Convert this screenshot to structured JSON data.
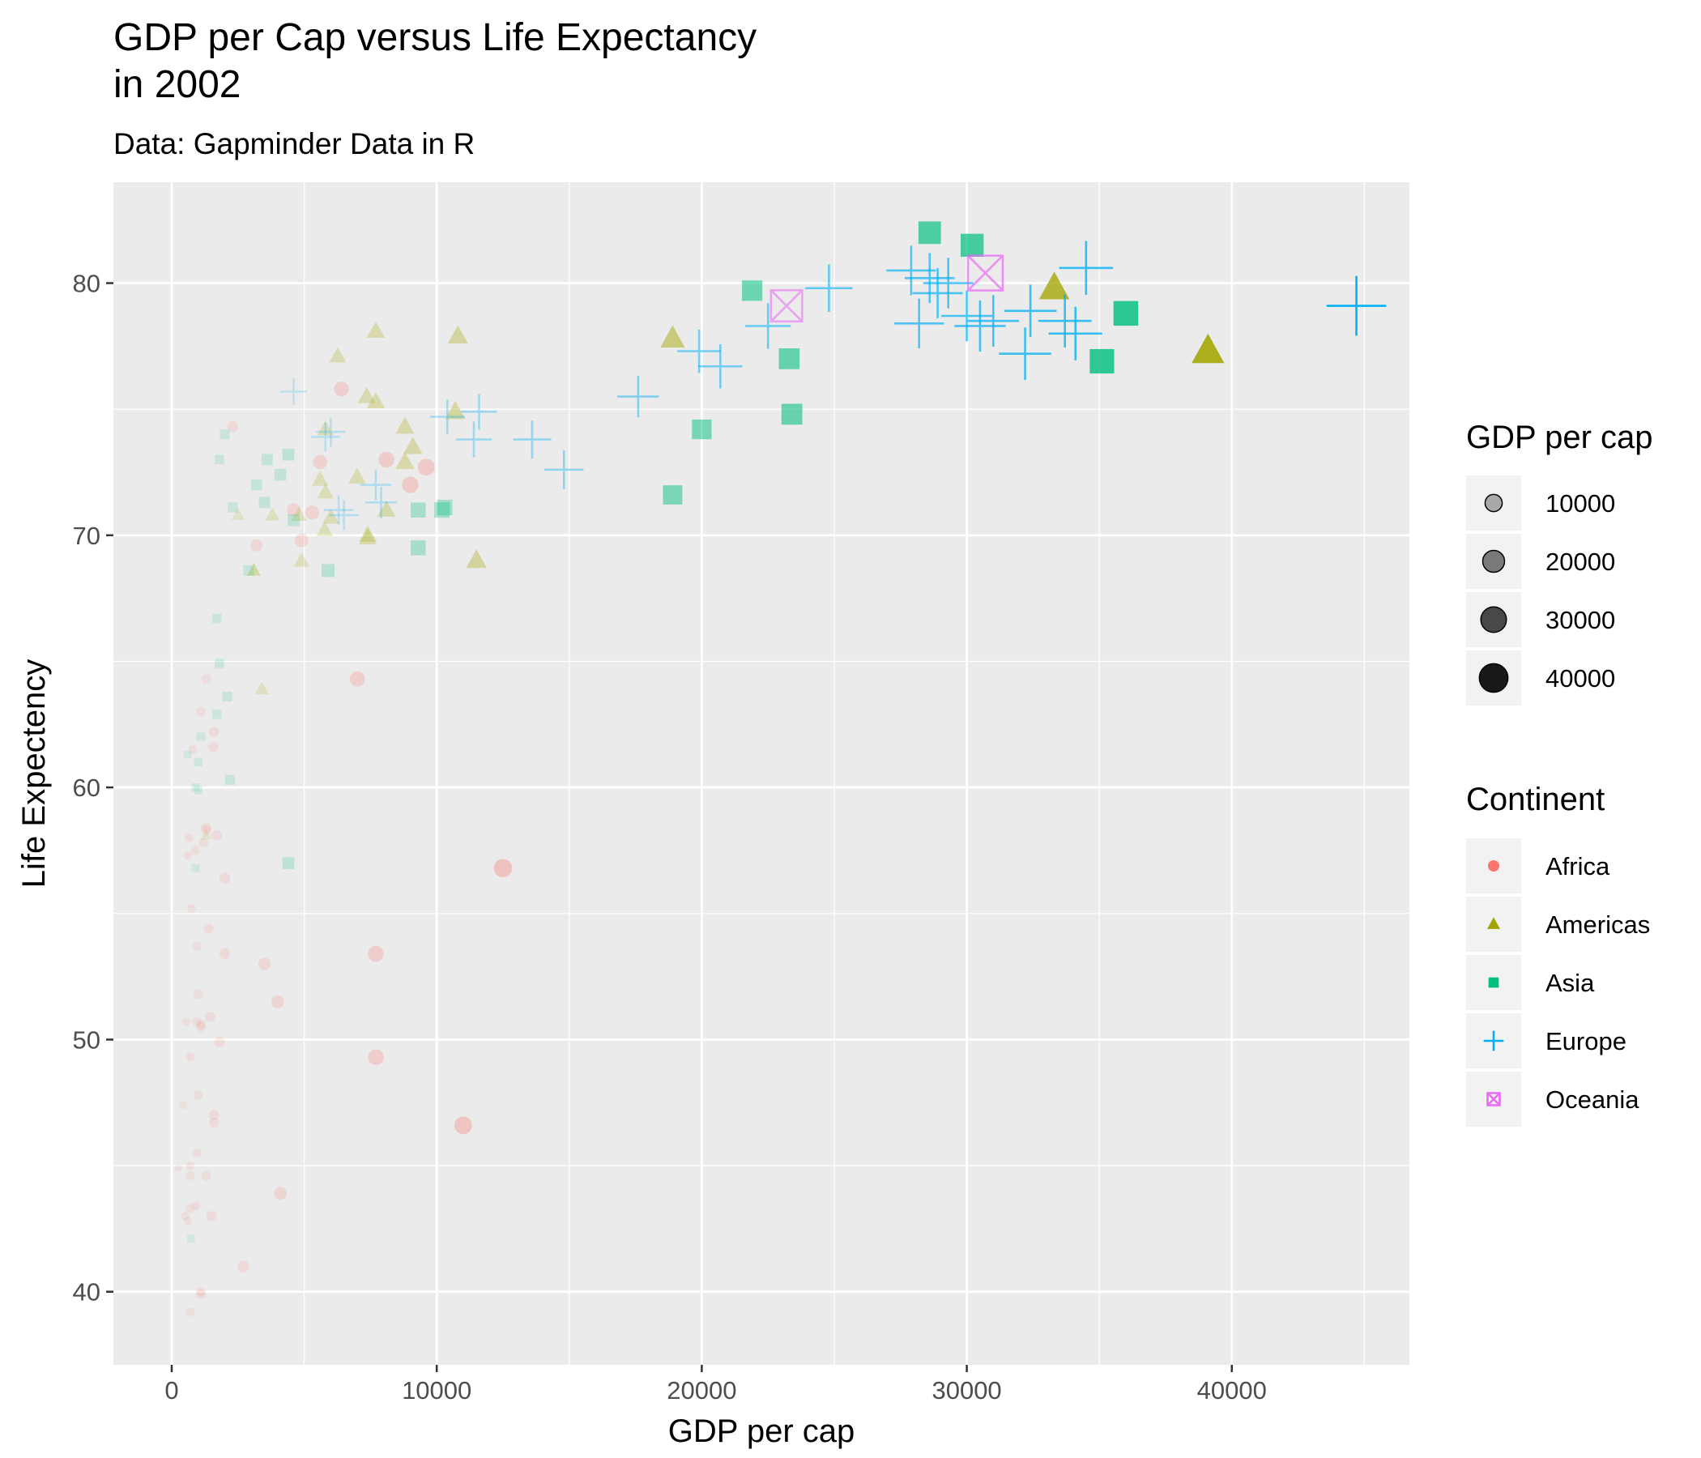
{
  "chart_data": {
    "type": "scatter",
    "title": "GDP per Cap versus Life Expectancy\nin 2002",
    "subtitle": "Data: Gapminder Data in R",
    "xlabel": "GDP per cap",
    "ylabel": "Life Expectency",
    "xlim": [
      -2200,
      46700
    ],
    "ylim": [
      37.1,
      84.0
    ],
    "x_ticks": [
      0,
      10000,
      20000,
      30000,
      40000
    ],
    "x_tick_labels": [
      "0",
      "10000",
      "20000",
      "30000",
      "40000"
    ],
    "y_ticks": [
      40,
      50,
      60,
      70,
      80
    ],
    "y_tick_labels": [
      "40",
      "50",
      "60",
      "70",
      "80"
    ],
    "grid": true,
    "legend_position": "right",
    "size_legend": {
      "title": "GDP per cap",
      "breaks": [
        10000,
        20000,
        30000,
        40000
      ],
      "labels": [
        "10000",
        "20000",
        "30000",
        "40000"
      ]
    },
    "color_legend": {
      "title": "Continent",
      "entries": [
        {
          "label": "Africa",
          "color": "#F8766D",
          "shape": "circle"
        },
        {
          "label": "Americas",
          "color": "#A3A500",
          "shape": "triangle"
        },
        {
          "label": "Asia",
          "color": "#00BF7D",
          "shape": "square"
        },
        {
          "label": "Europe",
          "color": "#00B0F6",
          "shape": "plus"
        },
        {
          "label": "Oceania",
          "color": "#E76BF3",
          "shape": "boxcross"
        }
      ]
    },
    "series": [
      {
        "name": "Africa",
        "points": [
          [
            5300,
            70.9
          ],
          [
            2700,
            41.0
          ],
          [
            1400,
            54.4
          ],
          [
            11000,
            46.6
          ],
          [
            1100,
            50.6
          ],
          [
            450,
            47.4
          ],
          [
            1800,
            49.9
          ],
          [
            700,
            43.3
          ],
          [
            1100,
            50.5
          ],
          [
            1100,
            63.0
          ],
          [
            250,
            44.9
          ],
          [
            3500,
            53.0
          ],
          [
            1300,
            44.6
          ],
          [
            3200,
            69.6
          ],
          [
            2000,
            53.4
          ],
          [
            750,
            55.2
          ],
          [
            550,
            50.7
          ],
          [
            12500,
            56.8
          ],
          [
            650,
            58.0
          ],
          [
            1300,
            58.4
          ],
          [
            950,
            53.7
          ],
          [
            950,
            45.5
          ],
          [
            4100,
            43.9
          ],
          [
            950,
            50.7
          ],
          [
            9600,
            72.7
          ],
          [
            600,
            57.3
          ],
          [
            700,
            45.0
          ],
          [
            5600,
            72.9
          ],
          [
            900,
            43.4
          ],
          [
            800,
            61.5
          ],
          [
            4600,
            71.0
          ],
          [
            500,
            43.0
          ],
          [
            600,
            42.8
          ],
          [
            1600,
            47.0
          ],
          [
            1000,
            51.8
          ],
          [
            2000,
            56.4
          ],
          [
            1700,
            58.1
          ],
          [
            4900,
            69.8
          ],
          [
            700,
            44.6
          ],
          [
            8100,
            73.0
          ],
          [
            2300,
            74.3
          ],
          [
            7700,
            53.4
          ],
          [
            4000,
            51.5
          ],
          [
            1100,
            40.0
          ],
          [
            1300,
            58.3
          ],
          [
            1200,
            57.8
          ],
          [
            1500,
            43.0
          ],
          [
            7000,
            64.3
          ],
          [
            9000,
            72.0
          ],
          [
            1600,
            46.7
          ],
          [
            6400,
            75.8
          ],
          [
            700,
            49.3
          ],
          [
            700,
            39.2
          ],
          [
            1100,
            39.9
          ],
          [
            7710,
            49.3
          ],
          [
            1300,
            64.3
          ],
          [
            1600,
            62.2
          ],
          [
            1450,
            50.9
          ],
          [
            1000,
            47.8
          ],
          [
            1570,
            61.6
          ],
          [
            900,
            57.5
          ]
        ]
      },
      {
        "name": "Americas",
        "points": [
          [
            8800,
            74.3
          ],
          [
            3400,
            63.9
          ],
          [
            8100,
            71.0
          ],
          [
            33300,
            79.8
          ],
          [
            10800,
            77.9
          ],
          [
            5800,
            71.7
          ],
          [
            7700,
            78.1
          ],
          [
            8800,
            72.9
          ],
          [
            4800,
            70.8
          ],
          [
            5800,
            74.2
          ],
          [
            6000,
            70.7
          ],
          [
            4900,
            68.98
          ],
          [
            3100,
            68.6
          ],
          [
            1300,
            58.1
          ],
          [
            3100,
            68.6
          ],
          [
            6994,
            72.3
          ],
          [
            10700,
            74.9
          ],
          [
            2500,
            70.8
          ],
          [
            7356,
            75.5
          ],
          [
            3800,
            70.8
          ],
          [
            7400,
            69.9
          ],
          [
            18900,
            77.8
          ],
          [
            7700,
            75.3
          ],
          [
            39100,
            77.3
          ],
          [
            11500,
            69.0
          ],
          [
            5773,
            70.2
          ],
          [
            7400,
            70.0
          ],
          [
            6260,
            77.1
          ],
          [
            5600,
            72.2
          ],
          [
            9100,
            73.5
          ]
        ]
      },
      {
        "name": "Asia",
        "points": [
          [
            730,
            42.1
          ],
          [
            23400,
            74.8
          ],
          [
            1100,
            62.0
          ],
          [
            900,
            56.8
          ],
          [
            3200,
            72.0
          ],
          [
            30200,
            81.5
          ],
          [
            1700,
            62.9
          ],
          [
            2900,
            68.6
          ],
          [
            9300,
            69.5
          ],
          [
            4400,
            57.0
          ],
          [
            21900,
            79.7
          ],
          [
            28600,
            82.0
          ],
          [
            4100,
            72.4
          ],
          [
            1700,
            66.7
          ],
          [
            23300,
            77.0
          ],
          [
            35100,
            76.9
          ],
          [
            10200,
            71.0
          ],
          [
            10300,
            71.1
          ],
          [
            2300,
            71.1
          ],
          [
            4600,
            70.6
          ],
          [
            1000,
            59.9
          ],
          [
            600,
            61.3
          ],
          [
            36000,
            78.8
          ],
          [
            2100,
            63.6
          ],
          [
            20000,
            74.2
          ],
          [
            18900,
            71.6
          ],
          [
            9300,
            71.0
          ],
          [
            3600,
            73.0
          ],
          [
            4400,
            73.2
          ],
          [
            1000,
            61.0
          ],
          [
            2200,
            60.3
          ],
          [
            5900,
            68.6
          ],
          [
            2000,
            74.0
          ],
          [
            1800,
            73.0
          ],
          [
            3500,
            71.3
          ],
          [
            1800,
            64.9
          ],
          [
            900,
            60.0
          ]
        ]
      },
      {
        "name": "Europe",
        "points": [
          [
            4600,
            75.7
          ],
          [
            32400,
            78.9
          ],
          [
            30500,
            78.3
          ],
          [
            6000,
            74.1
          ],
          [
            7700,
            72.0
          ],
          [
            11600,
            74.9
          ],
          [
            17600,
            75.5
          ],
          [
            32200,
            77.2
          ],
          [
            28200,
            78.4
          ],
          [
            28900,
            79.6
          ],
          [
            30000,
            78.7
          ],
          [
            22500,
            78.3
          ],
          [
            14800,
            72.6
          ],
          [
            27900,
            80.5
          ],
          [
            34100,
            78.0
          ],
          [
            28600,
            80.2
          ],
          [
            5800,
            73.9
          ],
          [
            33700,
            78.5
          ],
          [
            44700,
            79.1
          ],
          [
            10400,
            74.7
          ],
          [
            19900,
            77.3
          ],
          [
            7900,
            71.3
          ],
          [
            6300,
            71.0
          ],
          [
            11400,
            73.8
          ],
          [
            13600,
            73.8
          ],
          [
            20700,
            76.7
          ],
          [
            24800,
            79.8
          ],
          [
            29300,
            80.0
          ],
          [
            34500,
            80.6
          ],
          [
            6500,
            70.8
          ],
          [
            31000,
            78.5
          ]
        ]
      },
      {
        "name": "Oceania",
        "points": [
          [
            30700,
            80.4
          ],
          [
            23200,
            79.1
          ]
        ]
      }
    ]
  }
}
